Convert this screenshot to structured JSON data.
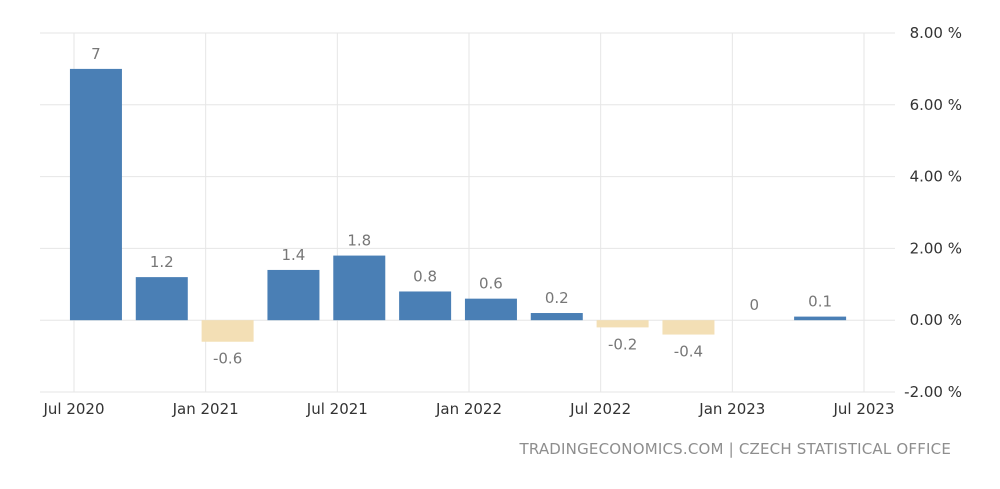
{
  "chart_data": {
    "type": "bar",
    "x": [
      "2020-09",
      "2020-12",
      "2021-03",
      "2021-06",
      "2021-09",
      "2021-12",
      "2022-03",
      "2022-06",
      "2022-09",
      "2022-12",
      "2023-03",
      "2023-06"
    ],
    "values": [
      7,
      1.2,
      -0.6,
      1.4,
      1.8,
      0.8,
      0.6,
      0.2,
      -0.2,
      -0.4,
      0,
      0.1
    ],
    "value_labels": [
      "7",
      "1.2",
      "-0.6",
      "1.4",
      "1.8",
      "0.8",
      "0.6",
      "0.2",
      "-0.2",
      "-0.4",
      "0",
      "0.1"
    ],
    "x_ticks": [
      "Jul 2020",
      "Jan 2021",
      "Jul 2021",
      "Jan 2022",
      "Jul 2022",
      "Jan 2023",
      "Jul 2023"
    ],
    "y_ticks": [
      "8.00 %",
      "6.00 %",
      "4.00 %",
      "2.00 %",
      "0.00 %",
      "-2.00 %"
    ],
    "y_tick_values": [
      8,
      6,
      4,
      2,
      0,
      -2
    ],
    "ylim": [
      -2,
      8
    ],
    "title": "",
    "xlabel": "",
    "ylabel": "",
    "grid": true,
    "colors": {
      "positive": "#4a7fb5",
      "negative": "#f3dfb5",
      "grid": "#e6e6e6",
      "label": "#777777",
      "axis_text": "#333333"
    }
  },
  "source": "TRADINGECONOMICS.COM | CZECH STATISTICAL OFFICE"
}
